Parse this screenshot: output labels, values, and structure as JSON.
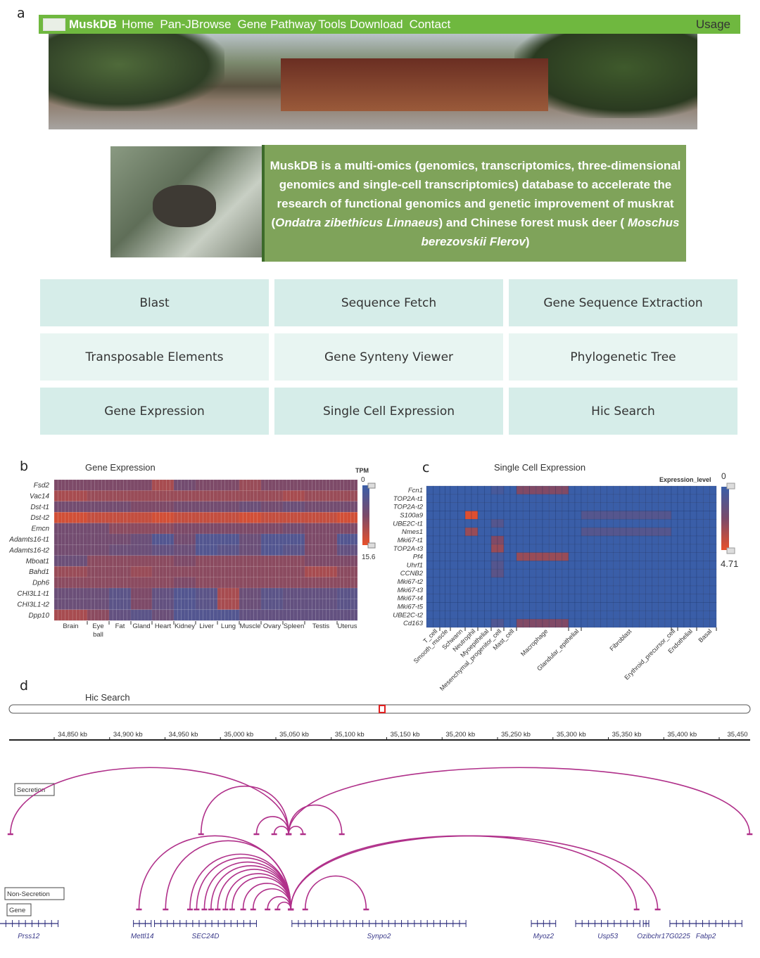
{
  "panel_labels": {
    "a": "a",
    "b": "b",
    "c": "c",
    "d": "d"
  },
  "nav": {
    "brand": "MuskDB",
    "items": [
      "Home",
      "Pan-JBrowse",
      "Gene",
      "Pathway",
      "Tools",
      "Download",
      "Contact"
    ],
    "usage": "Usage",
    "color": "#6fb83f"
  },
  "description": {
    "part1": "MuskDB is a multi-omics (genomics, transcriptomics, three-dimensional genomics and single-cell transcriptomics) database to accelerate the research of functional genomics and genetic improvement of muskrat (",
    "species1": "Ondatra zibethicus Linnaeus",
    "part2": ") and Chinese forest musk deer ( ",
    "species2": "Moschus berezovskii Flerov",
    "part3": ")"
  },
  "tools": [
    {
      "label": "Blast"
    },
    {
      "label": "Sequence Fetch"
    },
    {
      "label": "Gene Sequence Extraction"
    },
    {
      "label": "Transposable Elements"
    },
    {
      "label": "Gene Synteny Viewer"
    },
    {
      "label": "Phylogenetic Tree"
    },
    {
      "label": "Gene Expression"
    },
    {
      "label": "Single Cell Expression"
    },
    {
      "label": "Hic Search"
    }
  ],
  "chart_data": [
    {
      "type": "heatmap",
      "title": "Gene Expression",
      "legend_title": "TPM",
      "range": [
        0,
        15.6
      ],
      "colors": {
        "low": "#3a5ea8",
        "mid": "#7a4a6a",
        "high": "#e8502a"
      },
      "rows": [
        "Fsd2",
        "Vac14",
        "Dst-t1",
        "Dst-t2",
        "Emcn",
        "Adamts16-t1",
        "Adamts16-t2",
        "Mboat1",
        "Bahd1",
        "Dph6",
        "CHI3L1-t1",
        "CHI3L1-t2",
        "Dpp10"
      ],
      "columns": [
        "Brain",
        "Eye ball",
        "Fat",
        "Gland",
        "Heart",
        "Kidney",
        "Liver",
        "Lung",
        "Muscle",
        "Ovary",
        "Spleen",
        "Testis",
        "Uterus"
      ],
      "values": [
        [
          8,
          8,
          8,
          8,
          11,
          7,
          8,
          8,
          10,
          8,
          8,
          8,
          8
        ],
        [
          11,
          10,
          10,
          10,
          10,
          10,
          10,
          10,
          10,
          10,
          11,
          10,
          10
        ],
        [
          7,
          7,
          7,
          8,
          8,
          7,
          7,
          7,
          6,
          7,
          6,
          7,
          7
        ],
        [
          14,
          13,
          13,
          13,
          14,
          13,
          13,
          13,
          14,
          13,
          13,
          13,
          14
        ],
        [
          7,
          7,
          9,
          9,
          9,
          8,
          8,
          8,
          8,
          8,
          7,
          8,
          8
        ],
        [
          7,
          7,
          7,
          6,
          3,
          7,
          3,
          3,
          6,
          3,
          3,
          8,
          3
        ],
        [
          7,
          7,
          6,
          6,
          5,
          6,
          3,
          4,
          6,
          3,
          4,
          8,
          5
        ],
        [
          6,
          9,
          9,
          9,
          9,
          8,
          9,
          9,
          9,
          9,
          9,
          8,
          8
        ],
        [
          10,
          9,
          9,
          10,
          9,
          9,
          9,
          9,
          9,
          9,
          9,
          11,
          9
        ],
        [
          9,
          9,
          9,
          9,
          9,
          8,
          9,
          9,
          9,
          9,
          9,
          9,
          9
        ],
        [
          6,
          6,
          4,
          8,
          5,
          3,
          4,
          11,
          6,
          4,
          5,
          5,
          4
        ],
        [
          6,
          6,
          4,
          8,
          5,
          3,
          4,
          11,
          6,
          4,
          5,
          5,
          4
        ],
        [
          11,
          9,
          5,
          4,
          6,
          3,
          3,
          3,
          5,
          5,
          5,
          5,
          5
        ]
      ]
    },
    {
      "type": "heatmap",
      "title": "Single Cell Expression",
      "legend_title": "Expression_level",
      "range": [
        0,
        4.71
      ],
      "colors": {
        "low": "#3a5ea8",
        "mid": "#7a4a6a",
        "high": "#e8502a"
      },
      "rows": [
        "Fcn1",
        "TOP2A-t1",
        "TOP2A-t2",
        "S100a9",
        "UBE2C-t1",
        "Nmes1",
        "Mki67-t1",
        "TOP2A-t3",
        "Pf4",
        "Uhrf1",
        "CCNB2",
        "Mki67-t2",
        "Mki67-t3",
        "Mki67-t4",
        "Mki67-t5",
        "UBE2C-t2",
        "Cd163"
      ],
      "columns": [
        "T_cell",
        "Smooth_muscle",
        "Schwann",
        "Neutrophil",
        "Myoepithelial",
        "Mesenchymal_progenitor_cell",
        "Mast_cell",
        "Macrophage",
        "Glandular_epithelial",
        "Fibroblast",
        "Erythroid_precursor_cell",
        "Endothelial",
        "Basal"
      ],
      "values": [
        [
          0,
          0,
          0,
          0,
          0,
          0.5,
          0,
          2.5,
          0,
          0,
          0,
          0,
          0
        ],
        [
          0,
          0,
          0,
          0,
          0,
          0,
          0,
          0,
          0,
          0,
          0,
          0,
          0
        ],
        [
          0,
          0,
          0,
          0,
          0,
          0,
          0,
          0,
          0,
          0,
          0,
          0,
          0
        ],
        [
          0,
          0,
          0,
          4.5,
          0,
          0,
          0,
          0,
          0,
          1,
          0,
          0,
          0
        ],
        [
          0,
          0,
          0,
          0,
          0,
          1,
          0,
          0,
          0,
          0,
          0,
          0,
          0
        ],
        [
          0,
          0,
          0,
          3,
          0,
          0,
          0,
          0,
          0,
          1,
          0,
          0,
          0
        ],
        [
          0,
          0,
          0,
          0,
          0,
          2.5,
          0,
          0,
          0,
          0,
          0,
          0,
          0
        ],
        [
          0,
          0,
          0,
          0,
          0,
          3,
          0,
          0,
          0,
          0,
          0,
          0,
          0
        ],
        [
          0,
          0,
          0,
          0,
          0,
          0.5,
          0,
          3,
          0,
          0,
          0,
          0,
          0
        ],
        [
          0,
          0,
          0,
          0,
          0,
          1,
          0,
          0,
          0,
          0,
          0,
          0,
          0
        ],
        [
          0,
          0,
          0,
          0,
          0,
          1.2,
          0,
          0,
          0,
          0,
          0,
          0,
          0
        ],
        [
          0,
          0,
          0,
          0,
          0,
          0,
          0,
          0,
          0,
          0,
          0,
          0,
          0
        ],
        [
          0,
          0,
          0,
          0,
          0,
          0,
          0,
          0,
          0,
          0,
          0,
          0,
          0
        ],
        [
          0,
          0,
          0,
          0,
          0,
          0,
          0,
          0,
          0,
          0,
          0,
          0,
          0
        ],
        [
          0,
          0,
          0,
          0,
          0,
          0,
          0,
          0,
          0,
          0,
          0,
          0,
          0
        ],
        [
          0,
          0,
          0,
          0,
          0,
          0,
          0,
          0,
          0,
          0,
          0,
          0,
          0
        ],
        [
          0,
          0,
          0,
          0,
          0,
          0.8,
          0,
          2.5,
          0,
          0,
          0,
          0,
          0
        ]
      ]
    },
    {
      "type": "arc",
      "title": "Hic Search",
      "x_unit": "kb",
      "xlim": [
        34793,
        35461
      ],
      "ticks": [
        "34,850 kb",
        "34,900 kb",
        "34,950 kb",
        "35,000 kb",
        "35,050 kb",
        "35,100 kb",
        "35,150 kb",
        "35,200 kb",
        "35,250 kb",
        "35,300 kb",
        "35,350 kb",
        "35,400 kb",
        "35,450"
      ],
      "tick_values": [
        34850,
        34900,
        34950,
        35000,
        35050,
        35100,
        35150,
        35200,
        35250,
        35300,
        35350,
        35400,
        35450
      ],
      "arc_color": "#b0308a",
      "gene_color": "#2a2a7a",
      "selection_color": "#e02020",
      "tracks": [
        {
          "name": "Secretion",
          "arcs": [
            [
              34794,
              35045
            ],
            [
              35045,
              35461
            ],
            [
              34966,
              35045
            ],
            [
              35016,
              35045
            ],
            [
              35032,
              35045
            ],
            [
              35045,
              35058
            ],
            [
              35045,
              35093
            ]
          ]
        },
        {
          "name": "Non-Secretion",
          "arcs": [
            [
              34910,
              35047
            ],
            [
              34934,
              35047
            ],
            [
              34956,
              35047
            ],
            [
              34962,
              35047
            ],
            [
              34969,
              35047
            ],
            [
              34975,
              35047
            ],
            [
              34981,
              35047
            ],
            [
              34988,
              35047
            ],
            [
              34994,
              35047
            ],
            [
              35004,
              35047
            ],
            [
              35013,
              35047
            ],
            [
              35026,
              35047
            ],
            [
              35035,
              35047
            ],
            [
              35047,
              35359
            ],
            [
              35047,
              35378
            ],
            [
              35060,
              35115
            ]
          ]
        }
      ],
      "gene_track": "Gene",
      "genes": [
        {
          "name": "Prss12",
          "start": 34784,
          "end": 34837
        },
        {
          "name": "Mettl14",
          "start": 34905,
          "end": 34921
        },
        {
          "name": "SEC24D",
          "start": 34924,
          "end": 35016
        },
        {
          "name": "Synpo2",
          "start": 35048,
          "end": 35205
        },
        {
          "name": "Myoz2",
          "start": 35264,
          "end": 35286
        },
        {
          "name": "Usp53",
          "start": 35304,
          "end": 35362
        },
        {
          "name": "Ozibchr17G0225",
          "start": 35365,
          "end": 35370
        },
        {
          "name": "Fabp2",
          "start": 35389,
          "end": 35454
        }
      ]
    }
  ]
}
